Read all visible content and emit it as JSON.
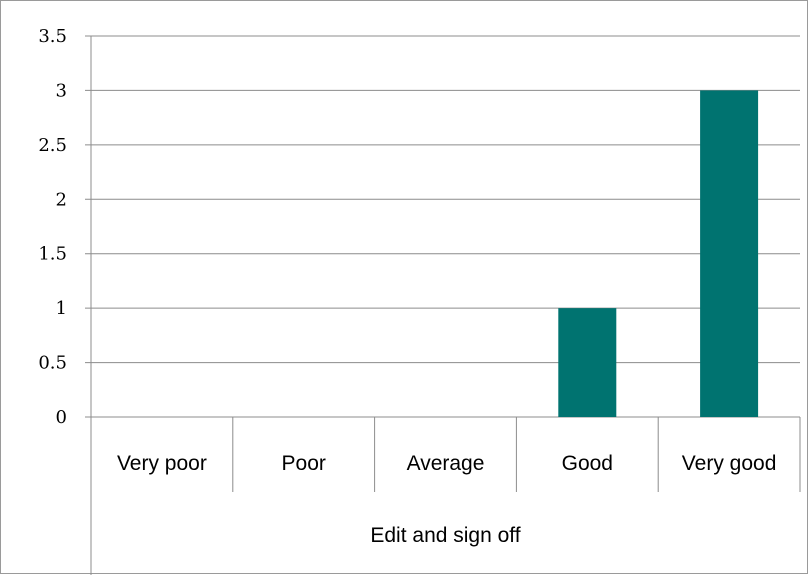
{
  "chart_data": {
    "type": "bar",
    "title": "",
    "xlabel": "",
    "ylabel": "",
    "group_label": "Edit and sign off",
    "categories": [
      "Very poor",
      "Poor",
      "Average",
      "Good",
      "Very good"
    ],
    "values": [
      0,
      0,
      0,
      1,
      3
    ],
    "ylim": [
      0,
      3.5
    ],
    "yticks": [
      "0",
      "0.5",
      "1",
      "1.5",
      "2",
      "2.5",
      "3",
      "3.5"
    ],
    "grid": true,
    "legend": "none",
    "bar_color": "#007370"
  }
}
